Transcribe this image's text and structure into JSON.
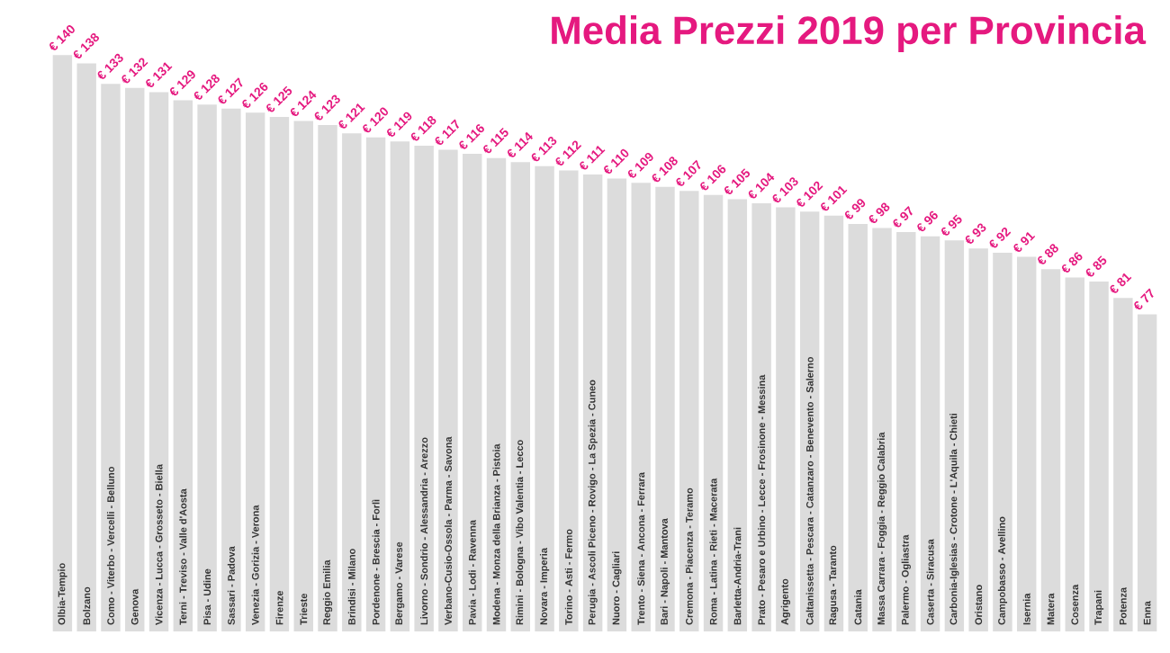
{
  "chart_data": {
    "type": "bar",
    "title": "Media Prezzi 2019 per Provincia",
    "categories": [
      "Olbia-Tempio",
      "Bolzano",
      "Como - Viterbo - Vercelli - Belluno",
      "Genova",
      "Vicenza - Lucca - Grosseto - Biella",
      "Terni - Treviso - Valle d'Aosta",
      "Pisa - Udine",
      "Sassari - Padova",
      "Venezia - Gorizia - Verona",
      "Firenze",
      "Trieste",
      "Reggio Emilia",
      "Brindisi - Milano",
      "Pordenone - Brescia - Forlì",
      "Bergamo - Varese",
      "Livorno - Sondrio - Alessandria - Arezzo",
      "Verbano-Cusio-Ossola - Parma - Savona",
      "Pavia - Lodi - Ravenna",
      "Modena - Monza della Brianza - Pistoia",
      "Rimini - Bologna - Vibo Valentia - Lecco",
      "Novara - Imperia",
      "Torino - Asti - Fermo",
      "Perugia - Ascoli Piceno - Rovigo - La Spezia - Cuneo",
      "Nuoro - Cagliari",
      "Trento - Siena - Ancona - Ferrara",
      "Bari - Napoli - Mantova",
      "Cremona - Piacenza - Teramo",
      "Roma - Latina - Rieti - Macerata",
      "Barletta-Andria-Trani",
      "Prato - Pesaro e Urbino - Lecce - Frosinone - Messina",
      "Agrigento",
      "Caltanissetta - Pescara - Catanzaro - Benevento - Salerno",
      "Ragusa - Taranto",
      "Catania",
      "Massa Carrara - Foggia - Reggio Calabria",
      "Palermo - Ogliastra",
      "Caserta - Siracusa",
      "Carbonia-Iglesias - Crotone - L'Aquila - Chieti",
      "Oristano",
      "Campobasso - Avellino",
      "Isernia",
      "Matera",
      "Cosenza",
      "Trapani",
      "Potenza",
      "Enna"
    ],
    "values": [
      140,
      138,
      133,
      132,
      131,
      129,
      128,
      127,
      126,
      125,
      124,
      123,
      121,
      120,
      119,
      118,
      117,
      116,
      115,
      114,
      113,
      112,
      111,
      110,
      109,
      108,
      107,
      106,
      105,
      104,
      103,
      102,
      101,
      99,
      98,
      97,
      96,
      95,
      93,
      92,
      91,
      88,
      86,
      85,
      81,
      77
    ],
    "value_labels": [
      "€ 140",
      "€ 138",
      "€ 133",
      "€ 132",
      "€ 131",
      "€ 129",
      "€ 128",
      "€ 127",
      "€ 126",
      "€ 125",
      "€ 124",
      "€ 123",
      "€ 121",
      "€ 120",
      "€ 119",
      "€ 118",
      "€ 117",
      "€ 116",
      "€ 115",
      "€ 114",
      "€ 113",
      "€ 112",
      "€ 111",
      "€ 110",
      "€ 109",
      "€ 108",
      "€ 107",
      "€ 106",
      "€ 105",
      "€ 104",
      "€ 103",
      "€ 102",
      "€ 101",
      "€ 99",
      "€ 98",
      "€ 97",
      "€ 96",
      "€ 95",
      "€ 93",
      "€ 92",
      "€ 91",
      "€ 88",
      "€ 86",
      "€ 85",
      "€ 81",
      "€ 77"
    ],
    "color": "#dcdcdc"
  }
}
